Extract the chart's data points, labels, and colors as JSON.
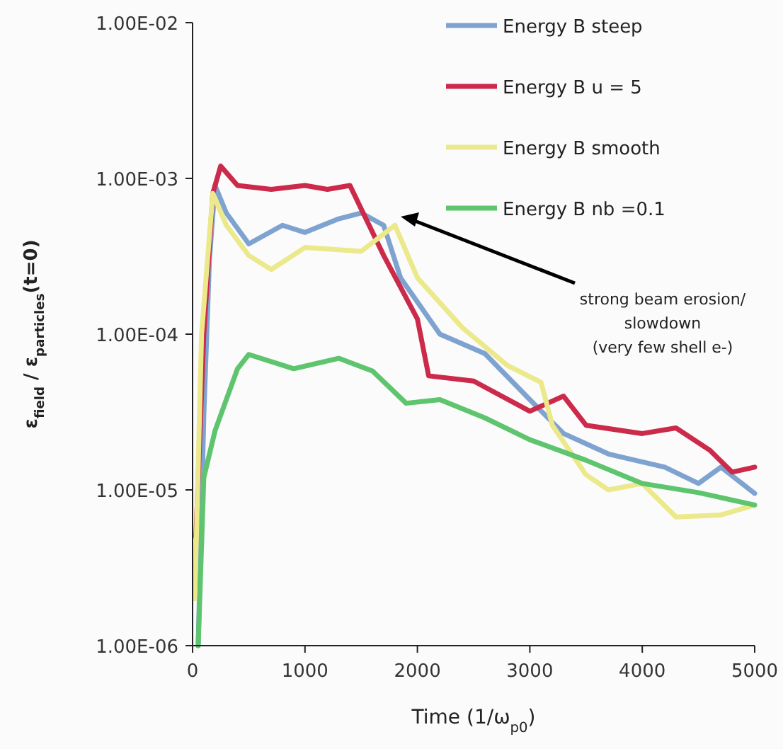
{
  "chart_data": {
    "type": "line",
    "xlabel": "Time (1/ω$_{p0}$)",
    "ylabel": "ε$_{field}$ / ε$_{particles}$(t=0)",
    "log": "y",
    "legend": "top right",
    "xlim": [
      0,
      5000
    ],
    "xticks": [
      0,
      1000,
      2000,
      3000,
      4000,
      5000
    ],
    "ylim": [
      1e-06,
      0.01
    ],
    "yticks": [
      {
        "value": 1e-06,
        "label": "1.00E-06"
      },
      {
        "value": 1e-05,
        "label": "1.00E-05"
      },
      {
        "value": 0.0001,
        "label": "1.00E-04"
      },
      {
        "value": 0.001,
        "label": "1.00E-03"
      },
      {
        "value": 0.01,
        "label": "1.00E-02"
      }
    ],
    "annotations": [
      "strong beam erosion/\nslowdown\n(very few shell e-)"
    ],
    "series": [
      {
        "name": "Energy B steep",
        "color": "#7fa3d0",
        "x": [
          50,
          100,
          150,
          200,
          300,
          500,
          800,
          1000,
          1300,
          1500,
          1700,
          1850,
          2200,
          2600,
          3000,
          3300,
          3700,
          4200,
          4500,
          4700,
          5000
        ],
        "values": [
          1e-06,
          3e-05,
          0.0003,
          0.0009,
          0.0006,
          0.00038,
          0.0005,
          0.00045,
          0.00055,
          0.0006,
          0.0005,
          0.00023,
          0.0001,
          7.5e-05,
          3.8e-05,
          2.3e-05,
          1.7e-05,
          1.4e-05,
          1.1e-05,
          1.4e-05,
          9.5e-06
        ]
      },
      {
        "name": "Energy B u = 5",
        "color": "#cc2a4a",
        "x": [
          30,
          100,
          180,
          250,
          400,
          700,
          1000,
          1200,
          1400,
          1700,
          2000,
          2100,
          2500,
          3000,
          3300,
          3500,
          4000,
          4300,
          4600,
          4800,
          5000
        ],
        "values": [
          5e-06,
          0.0001,
          0.0008,
          0.0012,
          0.0009,
          0.00085,
          0.0009,
          0.00085,
          0.0009,
          0.00032,
          0.000125,
          5.4e-05,
          5e-05,
          3.2e-05,
          4e-05,
          2.6e-05,
          2.3e-05,
          2.5e-05,
          1.8e-05,
          1.3e-05,
          1.4e-05
        ]
      },
      {
        "name": "Energy B smooth",
        "color": "#ece98c",
        "x": [
          20,
          80,
          180,
          300,
          500,
          700,
          1000,
          1500,
          1800,
          2000,
          2400,
          2800,
          3100,
          3200,
          3500,
          3700,
          4000,
          4300,
          4700,
          5000
        ],
        "values": [
          2e-06,
          0.0001,
          0.0008,
          0.0005,
          0.00032,
          0.00026,
          0.00036,
          0.00034,
          0.0005,
          0.00023,
          0.00011,
          6.3e-05,
          4.9e-05,
          2.6e-05,
          1.25e-05,
          1e-05,
          1.1e-05,
          6.7e-06,
          6.9e-06,
          8e-06
        ]
      },
      {
        "name": "Energy B nb =0.1",
        "color": "#5ec46e",
        "x": [
          50,
          100,
          200,
          400,
          500,
          900,
          1300,
          1600,
          1900,
          2200,
          2600,
          3000,
          3500,
          4000,
          4500,
          5000
        ],
        "values": [
          1e-06,
          1.2e-05,
          2.4e-05,
          6e-05,
          7.4e-05,
          6e-05,
          7e-05,
          5.8e-05,
          3.6e-05,
          3.8e-05,
          2.9e-05,
          2.1e-05,
          1.55e-05,
          1.1e-05,
          9.6e-06,
          8e-06
        ]
      }
    ]
  }
}
